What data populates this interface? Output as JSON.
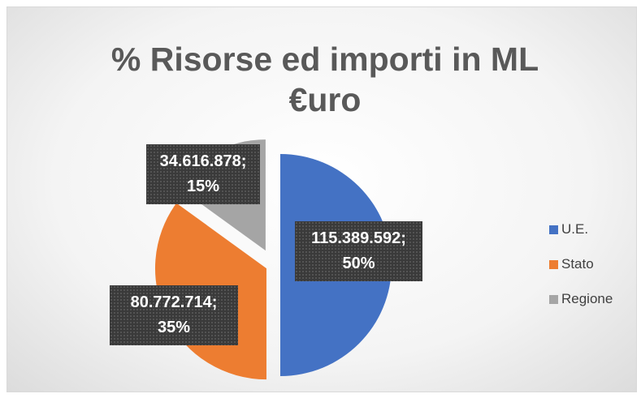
{
  "chart_data": {
    "type": "pie",
    "title": "% Risorse ed importi in ML €uro",
    "categories": [
      "U.E.",
      "Stato",
      "Regione"
    ],
    "values": [
      115389592,
      80772714,
      34616878
    ],
    "value_labels": [
      "115.389.592; 50%",
      "80.772.714; 35%",
      "34.616.878; 15%"
    ],
    "colors": [
      "#4472c4",
      "#ed7d31",
      "#a5a5a5"
    ],
    "legend": "right"
  }
}
